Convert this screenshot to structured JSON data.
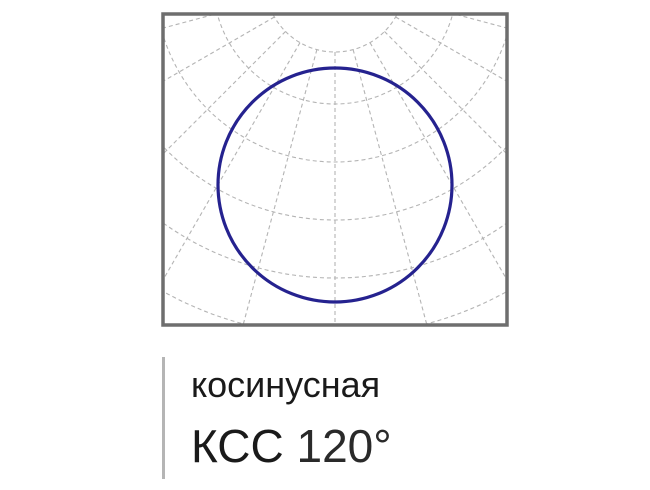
{
  "diagram": {
    "type": "polar-light-distribution",
    "curve": "cosine",
    "colors": {
      "frame": "#6e6e6e",
      "grid": "#b4b4b4",
      "curve": "#25228f"
    }
  },
  "caption": {
    "line1": "косинусная",
    "line2_label": "КСС",
    "line2_angle": "120°"
  }
}
